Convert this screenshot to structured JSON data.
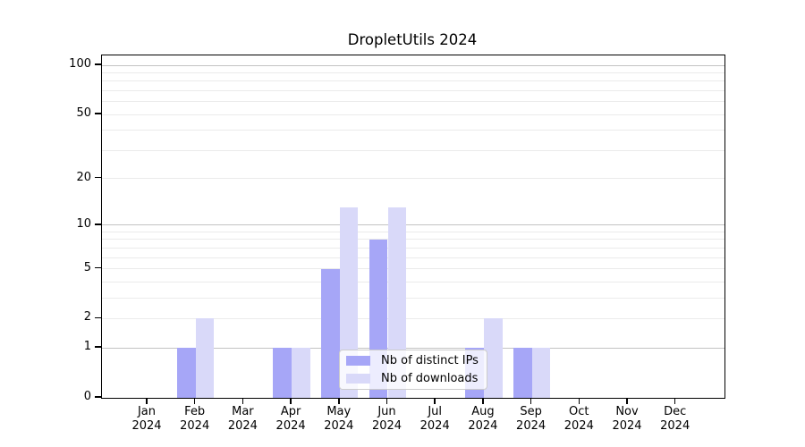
{
  "title": "DropletUtils 2024",
  "year_label": "2024",
  "legend": {
    "items": [
      {
        "label": "Nb of distinct IPs",
        "color": "#a6a6f7"
      },
      {
        "label": "Nb of downloads",
        "color": "#d9d9f9"
      }
    ]
  },
  "chart_data": {
    "type": "bar",
    "title": "DropletUtils 2024",
    "categories": [
      "Jan 2024",
      "Feb 2024",
      "Mar 2024",
      "Apr 2024",
      "May 2024",
      "Jun 2024",
      "Jul 2024",
      "Aug 2024",
      "Sep 2024",
      "Oct 2024",
      "Nov 2024",
      "Dec 2024"
    ],
    "months": [
      "Jan",
      "Feb",
      "Mar",
      "Apr",
      "May",
      "Jun",
      "Jul",
      "Aug",
      "Sep",
      "Oct",
      "Nov",
      "Dec"
    ],
    "series": [
      {
        "name": "Nb of distinct IPs",
        "color": "#a6a6f7",
        "values": [
          0,
          1,
          0,
          1,
          5,
          8,
          0,
          1,
          1,
          0,
          0,
          0
        ]
      },
      {
        "name": "Nb of downloads",
        "color": "#d9d9f9",
        "values": [
          0,
          2,
          0,
          1,
          13,
          13,
          0,
          2,
          1,
          0,
          0,
          0
        ]
      }
    ],
    "xlabel": "",
    "ylabel": "",
    "yscale": "log1p",
    "yticks": [
      0,
      1,
      2,
      5,
      10,
      20,
      50,
      100
    ],
    "major_grid_values": [
      1,
      10,
      100
    ],
    "ylim": [
      0,
      115
    ],
    "grid": true,
    "legend_position": "inside lower-center"
  }
}
